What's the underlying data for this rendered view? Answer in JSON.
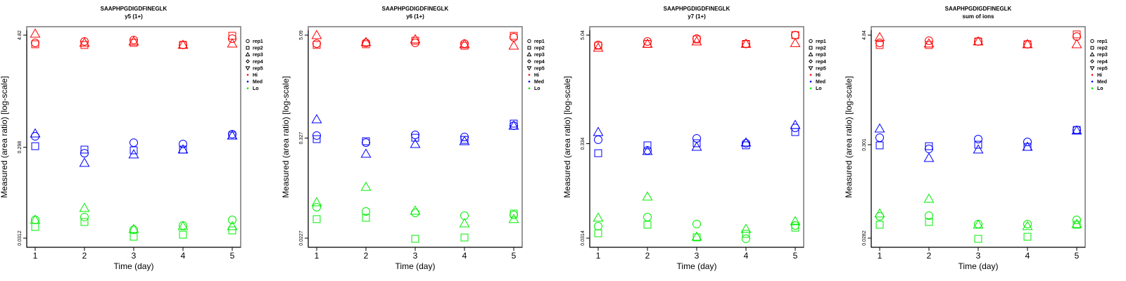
{
  "chart_data": [
    {
      "type": "scatter",
      "title": "SAAPHPGDIGDFINEGLK",
      "subtitle": "y5 (1+)",
      "xlabel": "Time (day)",
      "ylabel": "Measured (area ratio) [log-scale]",
      "yscale": "log",
      "x_ticks": [
        1,
        2,
        3,
        4,
        5
      ],
      "y_ticks": [
        4.82,
        0.298,
        0.0312
      ],
      "y_tick_labels": [
        "4.82",
        "0.298",
        "0.0312"
      ],
      "legend_position": "right",
      "series": [
        {
          "name": "Hi rep1",
          "level": "Hi",
          "rep": "rep1",
          "x": [
            1,
            2,
            3,
            4,
            5
          ],
          "y": [
            3.98,
            4.12,
            4.27,
            3.78,
            4.42
          ]
        },
        {
          "name": "Hi rep2",
          "level": "Hi",
          "rep": "rep2",
          "x": [
            1,
            2,
            3,
            4,
            5
          ],
          "y": [
            3.84,
            3.78,
            3.98,
            3.78,
            4.74
          ]
        },
        {
          "name": "Hi rep3",
          "level": "Hi",
          "rep": "rep3",
          "x": [
            1,
            2,
            3,
            4,
            5
          ],
          "y": [
            4.99,
            3.98,
            4.12,
            3.78,
            3.91
          ]
        },
        {
          "name": "Med rep1",
          "level": "Med",
          "rep": "rep1",
          "x": [
            1,
            2,
            3,
            4,
            5
          ],
          "y": [
            0.391,
            0.257,
            0.334,
            0.323,
            0.412
          ]
        },
        {
          "name": "Med rep2",
          "level": "Med",
          "rep": "rep2",
          "x": [
            1,
            2,
            3,
            4,
            5
          ],
          "y": [
            0.306,
            0.281,
            0.276,
            0.281,
            0.398
          ]
        },
        {
          "name": "Med rep3",
          "level": "Med",
          "rep": "rep3",
          "x": [
            1,
            2,
            3,
            4,
            5
          ],
          "y": [
            0.419,
            0.202,
            0.249,
            0.281,
            0.398
          ]
        },
        {
          "name": "Lo rep1",
          "level": "Lo",
          "rep": "rep1",
          "x": [
            1,
            2,
            3,
            4,
            5
          ],
          "y": [
            0.0491,
            0.0527,
            0.0385,
            0.0427,
            0.0491
          ]
        },
        {
          "name": "Lo rep2",
          "level": "Lo",
          "rep": "rep2",
          "x": [
            1,
            2,
            3,
            4,
            5
          ],
          "y": [
            0.0412,
            0.0466,
            0.0323,
            0.034,
            0.0378
          ]
        },
        {
          "name": "Lo rep3",
          "level": "Lo",
          "rep": "rep3",
          "x": [
            1,
            2,
            3,
            4,
            5
          ],
          "y": [
            0.0491,
            0.066,
            0.0391,
            0.0419,
            0.0419
          ]
        }
      ]
    },
    {
      "type": "scatter",
      "title": "SAAPHPGDIGDFINEGLK",
      "subtitle": "y6 (1+)",
      "xlabel": "Time (day)",
      "ylabel": "Measured (area ratio) [log-scale]",
      "yscale": "log",
      "x_ticks": [
        1,
        2,
        3,
        4,
        5
      ],
      "y_ticks": [
        5.09,
        0.327,
        0.0227
      ],
      "y_tick_labels": [
        "5.09",
        "0.327",
        "0.0227"
      ],
      "legend_position": "right",
      "series": [
        {
          "name": "Hi rep1",
          "level": "Hi",
          "rep": "rep1",
          "x": [
            1,
            2,
            3,
            4,
            5
          ],
          "y": [
            4.06,
            4.14,
            4.14,
            4.06,
            4.81
          ]
        },
        {
          "name": "Hi rep2",
          "level": "Hi",
          "rep": "rep2",
          "x": [
            1,
            2,
            3,
            4,
            5
          ],
          "y": [
            3.92,
            3.99,
            4.38,
            3.84,
            4.99
          ]
        },
        {
          "name": "Hi rep3",
          "level": "Hi",
          "rep": "rep3",
          "x": [
            1,
            2,
            3,
            4,
            5
          ],
          "y": [
            5.09,
            4.22,
            4.55,
            3.99,
            3.84
          ]
        },
        {
          "name": "Med rep1",
          "level": "Med",
          "rep": "rep1",
          "x": [
            1,
            2,
            3,
            4,
            5
          ],
          "y": [
            0.35,
            0.29,
            0.356,
            0.337,
            0.454
          ]
        },
        {
          "name": "Med rep2",
          "level": "Med",
          "rep": "rep2",
          "x": [
            1,
            2,
            3,
            4,
            5
          ],
          "y": [
            0.318,
            0.301,
            0.33,
            0.312,
            0.481
          ]
        },
        {
          "name": "Med rep3",
          "level": "Med",
          "rep": "rep3",
          "x": [
            1,
            2,
            3,
            4,
            5
          ],
          "y": [
            0.538,
            0.215,
            0.279,
            0.301,
            0.454
          ]
        },
        {
          "name": "Lo rep1",
          "level": "Lo",
          "rep": "rep1",
          "x": [
            1,
            2,
            3,
            4,
            5
          ],
          "y": [
            0.0518,
            0.0462,
            0.0445,
            0.0413,
            0.0421
          ]
        },
        {
          "name": "Lo rep2",
          "level": "Lo",
          "rep": "rep2",
          "x": [
            1,
            2,
            3,
            4,
            5
          ],
          "y": [
            0.0377,
            0.0391,
            0.0223,
            0.0231,
            0.0437
          ]
        },
        {
          "name": "Lo rep3",
          "level": "Lo",
          "rep": "rep3",
          "x": [
            1,
            2,
            3,
            4,
            5
          ],
          "y": [
            0.059,
            0.089,
            0.0471,
            0.0336,
            0.0377
          ]
        }
      ]
    },
    {
      "type": "scatter",
      "title": "SAAPHPGDIGDFINEGLK",
      "subtitle": "y7 (1+)",
      "xlabel": "Time (day)",
      "ylabel": "Measured (area ratio) [log-scale]",
      "yscale": "log",
      "x_ticks": [
        1,
        2,
        3,
        4,
        5
      ],
      "y_ticks": [
        5.04,
        0.334,
        0.0314
      ],
      "y_tick_labels": [
        "5.04",
        "0.334",
        "0.0314"
      ],
      "legend_position": "right",
      "series": [
        {
          "name": "Hi rep1",
          "level": "Hi",
          "rep": "rep1",
          "x": [
            1,
            2,
            3,
            4,
            5
          ],
          "y": [
            3.94,
            4.3,
            4.62,
            4.05,
            5.04
          ]
        },
        {
          "name": "Hi rep2",
          "level": "Hi",
          "rep": "rep2",
          "x": [
            1,
            2,
            3,
            4,
            5
          ],
          "y": [
            3.87,
            4.05,
            4.53,
            4.05,
            5.04
          ]
        },
        {
          "name": "Hi rep3",
          "level": "Hi",
          "rep": "rep3",
          "x": [
            1,
            2,
            3,
            4,
            5
          ],
          "y": [
            3.67,
            4.05,
            4.3,
            4.05,
            4.12
          ]
        },
        {
          "name": "Med rep1",
          "level": "Med",
          "rep": "rep1",
          "x": [
            1,
            2,
            3,
            4,
            5
          ],
          "y": [
            0.368,
            0.282,
            0.381,
            0.337,
            0.496
          ]
        },
        {
          "name": "Med rep2",
          "level": "Med",
          "rep": "rep2",
          "x": [
            1,
            2,
            3,
            4,
            5
          ],
          "y": [
            0.263,
            0.32,
            0.337,
            0.32,
            0.446
          ]
        },
        {
          "name": "Med rep3",
          "level": "Med",
          "rep": "rep3",
          "x": [
            1,
            2,
            3,
            4,
            5
          ],
          "y": [
            0.446,
            0.277,
            0.308,
            0.343,
            0.532
          ]
        },
        {
          "name": "Lo rep1",
          "level": "Lo",
          "rep": "rep1",
          "x": [
            1,
            2,
            3,
            4,
            5
          ],
          "y": [
            0.0423,
            0.0532,
            0.0447,
            0.0309,
            0.0431
          ]
        },
        {
          "name": "Lo rep2",
          "level": "Lo",
          "rep": "rep2",
          "x": [
            1,
            2,
            3,
            4,
            5
          ],
          "y": [
            0.0355,
            0.0439,
            0.032,
            0.0349,
            0.0408
          ]
        },
        {
          "name": "Lo rep3",
          "level": "Lo",
          "rep": "rep3",
          "x": [
            1,
            2,
            3,
            4,
            5
          ],
          "y": [
            0.0523,
            0.0886,
            0.0325,
            0.0395,
            0.0479
          ]
        }
      ]
    },
    {
      "type": "scatter",
      "title": "SAAPHPGDIGDFINEGLK",
      "subtitle": "sum of ions",
      "xlabel": "Time (day)",
      "ylabel": "Measured (area ratio) [log-scale]",
      "yscale": "log",
      "x_ticks": [
        1,
        2,
        3,
        4,
        5
      ],
      "y_ticks": [
        4.84,
        0.301,
        0.0282
      ],
      "y_tick_labels": [
        "4.84",
        "0.301",
        "0.0282"
      ],
      "legend_position": "right",
      "series": [
        {
          "name": "Hi rep1",
          "level": "Hi",
          "rep": "rep1",
          "x": [
            1,
            2,
            3,
            4,
            5
          ],
          "y": [
            3.98,
            4.2,
            4.12,
            3.84,
            4.67
          ]
        },
        {
          "name": "Hi rep2",
          "level": "Hi",
          "rep": "rep2",
          "x": [
            1,
            2,
            3,
            4,
            5
          ],
          "y": [
            3.77,
            3.77,
            4.12,
            3.84,
            4.93
          ]
        },
        {
          "name": "Hi rep3",
          "level": "Hi",
          "rep": "rep3",
          "x": [
            1,
            2,
            3,
            4,
            5
          ],
          "y": [
            4.59,
            3.91,
            4.12,
            3.84,
            3.84
          ]
        },
        {
          "name": "Med rep1",
          "level": "Med",
          "rep": "rep1",
          "x": [
            1,
            2,
            3,
            4,
            5
          ],
          "y": [
            0.36,
            0.271,
            0.347,
            0.323,
            0.438
          ]
        },
        {
          "name": "Med rep2",
          "level": "Med",
          "rep": "rep2",
          "x": [
            1,
            2,
            3,
            4,
            5
          ],
          "y": [
            0.296,
            0.29,
            0.301,
            0.285,
            0.438
          ]
        },
        {
          "name": "Med rep3",
          "level": "Med",
          "rep": "rep3",
          "x": [
            1,
            2,
            3,
            4,
            5
          ],
          "y": [
            0.453,
            0.215,
            0.266,
            0.285,
            0.43
          ]
        },
        {
          "name": "Lo rep1",
          "level": "Lo",
          "rep": "rep1",
          "x": [
            1,
            2,
            3,
            4,
            5
          ],
          "y": [
            0.049,
            0.0499,
            0.0403,
            0.0403,
            0.0448
          ]
        },
        {
          "name": "Lo rep2",
          "level": "Lo",
          "rep": "rep2",
          "x": [
            1,
            2,
            3,
            4,
            5
          ],
          "y": [
            0.0396,
            0.0425,
            0.0277,
            0.0292,
            0.0396
          ]
        },
        {
          "name": "Lo rep3",
          "level": "Lo",
          "rep": "rep3",
          "x": [
            1,
            2,
            3,
            4,
            5
          ],
          "y": [
            0.0526,
            0.0764,
            0.0396,
            0.0382,
            0.0403
          ]
        }
      ]
    }
  ],
  "legend": {
    "shapes": [
      {
        "label": "rep1",
        "symbol": "circle"
      },
      {
        "label": "rep2",
        "symbol": "square"
      },
      {
        "label": "rep3",
        "symbol": "triangle"
      },
      {
        "label": "rep4",
        "symbol": "diamond"
      },
      {
        "label": "rep5",
        "symbol": "triangle-down"
      }
    ],
    "levels": [
      {
        "label": "Hi",
        "color": "#ff0000"
      },
      {
        "label": "Med",
        "color": "#0000ff"
      },
      {
        "label": "Lo",
        "color": "#00ee00"
      }
    ]
  },
  "colors": {
    "Hi": "#ff0000",
    "Med": "#0000ff",
    "Lo": "#00ee00"
  },
  "rep_symbols": {
    "rep1": "circle",
    "rep2": "square",
    "rep3": "triangle",
    "rep4": "diamond",
    "rep5": "triangle-down"
  }
}
